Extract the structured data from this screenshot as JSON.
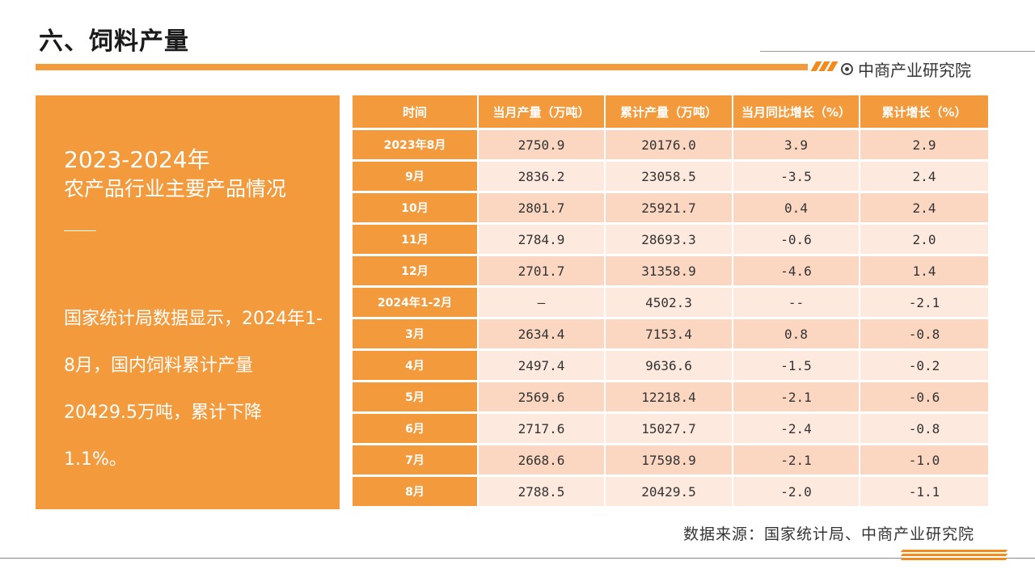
{
  "page": {
    "title": "六、饲料产量",
    "brand": "中商产业研究院",
    "source": "数据来源：国家统计局、中商产业研究院"
  },
  "left_panel": {
    "year": "2023-2024年",
    "subtitle": "农产品行业主要产品情况",
    "body": "国家统计局数据显示，2024年1-8月，国内饲料累计产量20429.5万吨，累计下降1.1%。"
  },
  "table": {
    "headers": [
      "时间",
      "当月产量（万吨）",
      "累计产量（万吨）",
      "当月同比增长（%）",
      "累计增长（%）"
    ],
    "rows": [
      [
        "2023年8月",
        "2750.9",
        "20176.0",
        "3.9",
        "2.9"
      ],
      [
        "9月",
        "2836.2",
        "23058.5",
        "-3.5",
        "2.4"
      ],
      [
        "10月",
        "2801.7",
        "25921.7",
        "0.4",
        "2.4"
      ],
      [
        "11月",
        "2784.9",
        "28693.3",
        "-0.6",
        "2.0"
      ],
      [
        "12月",
        "2701.7",
        "31358.9",
        "-4.6",
        "1.4"
      ],
      [
        "2024年1-2月",
        "—",
        "4502.3",
        "--",
        "-2.1"
      ],
      [
        "3月",
        "2634.4",
        "7153.4",
        "0.8",
        "-0.8"
      ],
      [
        "4月",
        "2497.4",
        "9636.6",
        "-1.5",
        "-0.2"
      ],
      [
        "5月",
        "2569.6",
        "12218.4",
        "-2.1",
        "-0.6"
      ],
      [
        "6月",
        "2717.6",
        "15027.7",
        "-2.4",
        "-0.8"
      ],
      [
        "7月",
        "2668.6",
        "17598.9",
        "-2.1",
        "-1.0"
      ],
      [
        "8月",
        "2788.5",
        "20429.5",
        "-2.0",
        "-1.1"
      ]
    ]
  },
  "colors": {
    "accent": "#f39a3c",
    "row_dark": "#fbd7c2",
    "row_light": "#fde9dd"
  }
}
